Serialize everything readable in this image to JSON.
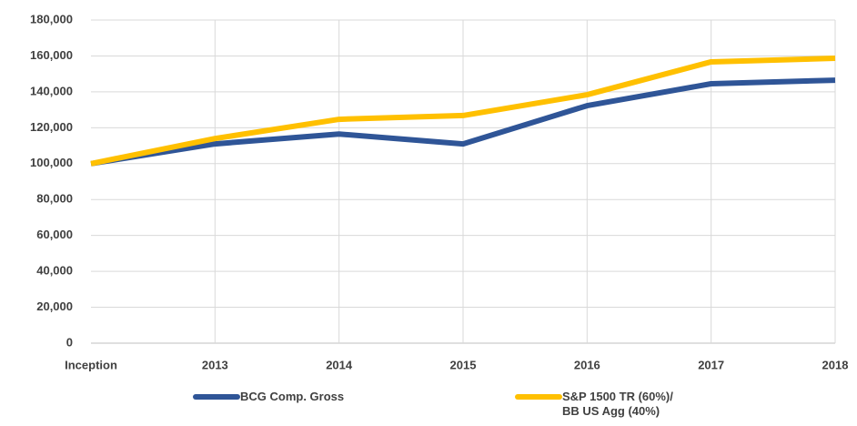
{
  "chart_data": {
    "type": "line",
    "categories": [
      "Inception",
      "2013",
      "2014",
      "2015",
      "2016",
      "2017",
      "2018"
    ],
    "series": [
      {
        "name": "BCG Comp. Gross",
        "color": "#2f5597",
        "values": [
          100000,
          111000,
          116500,
          111000,
          132300,
          144500,
          146500
        ]
      },
      {
        "name": "S&P 1500 TR (60%)/ BB US Agg (40%)",
        "color": "#ffc000",
        "values": [
          100000,
          114000,
          124700,
          126800,
          138400,
          156700,
          158700
        ]
      }
    ],
    "ylim": [
      0,
      180000
    ],
    "yticks": [
      0,
      {
        "value": 20000,
        "label": "20,000"
      },
      {
        "value": 40000,
        "label": "40,000"
      },
      {
        "value": 60000,
        "label": "60,000"
      },
      {
        "value": 80000,
        "label": "80,000"
      },
      {
        "value": 100000,
        "label": "100,000"
      },
      {
        "value": 120000,
        "label": "120,000"
      },
      {
        "value": 140000,
        "label": "140,000"
      },
      {
        "value": 160000,
        "label": "160,000"
      },
      {
        "value": 180000,
        "label": "180,000"
      }
    ],
    "grid": true
  }
}
